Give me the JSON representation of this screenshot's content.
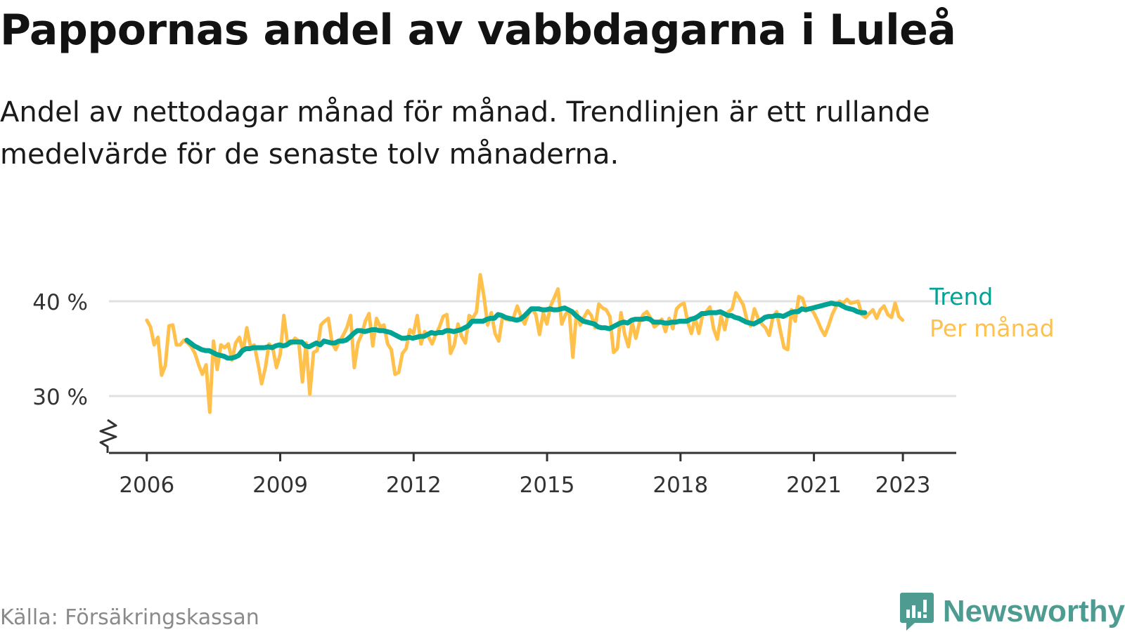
{
  "header": {
    "title": "Pappornas andel av vabbdagarna i Luleå",
    "subtitle": "Andel av nettodagar månad för månad. Trendlinjen är ett rullande medelvärde för de senaste tolv månaderna."
  },
  "footer": {
    "source": "Källa: Försäkringskassan",
    "brand": "Newsworthy"
  },
  "colors": {
    "monthly": "#ffc04c",
    "trend": "#00a394",
    "axis": "#333333",
    "grid": "#e0e0e0",
    "brand": "#4d9b91"
  },
  "chart_data": {
    "type": "line",
    "x_unit": "year",
    "y_unit": "%",
    "xlim": [
      2005.15,
      2024.2
    ],
    "ylim": [
      24,
      44
    ],
    "y_break": true,
    "yticks": [
      30,
      40
    ],
    "ytick_labels": [
      "30 %",
      "40 %"
    ],
    "xticks": [
      2006,
      2009,
      2012,
      2015,
      2018,
      2021,
      2023
    ],
    "xtick_labels": [
      "2006",
      "2009",
      "2012",
      "2015",
      "2018",
      "2021",
      "2023"
    ],
    "legend_placement": "right end of lines",
    "series": [
      {
        "name": "Trend",
        "color_key": "trend",
        "x_start": 2006.9,
        "x_step": 0.0833,
        "values": [
          35.9,
          35.6,
          35.3,
          35.1,
          34.9,
          34.8,
          34.8,
          34.6,
          34.4,
          34.3,
          34.2,
          34.0,
          34.0,
          34.1,
          34.3,
          34.8,
          35.0,
          35.0,
          35.1,
          35.1,
          35.1,
          35.1,
          35.2,
          35.1,
          35.3,
          35.4,
          35.3,
          35.4,
          35.7,
          35.7,
          35.7,
          35.7,
          35.3,
          35.2,
          35.4,
          35.6,
          35.4,
          35.8,
          35.7,
          35.6,
          35.6,
          35.8,
          35.8,
          35.9,
          36.2,
          36.6,
          36.9,
          36.9,
          36.8,
          36.9,
          37.0,
          37.0,
          36.9,
          36.9,
          36.8,
          36.7,
          36.5,
          36.3,
          36.1,
          36.1,
          36.2,
          36.1,
          36.2,
          36.3,
          36.3,
          36.5,
          36.7,
          36.6,
          36.7,
          36.7,
          36.9,
          36.9,
          36.8,
          36.9,
          37.0,
          37.2,
          37.4,
          37.9,
          37.9,
          37.9,
          37.9,
          38.1,
          38.2,
          38.2,
          38.6,
          38.5,
          38.3,
          38.2,
          38.1,
          38.0,
          38.1,
          38.4,
          38.8,
          39.2,
          39.2,
          39.2,
          39.1,
          39.1,
          39.2,
          39.1,
          39.1,
          39.2,
          39.3,
          39.1,
          38.9,
          38.5,
          38.2,
          37.9,
          37.8,
          37.7,
          37.6,
          37.3,
          37.2,
          37.2,
          37.1,
          37.3,
          37.5,
          37.7,
          37.8,
          37.7,
          38.0,
          38.1,
          38.1,
          38.1,
          38.2,
          38.1,
          37.8,
          37.8,
          37.8,
          37.7,
          37.7,
          37.8,
          37.8,
          37.9,
          37.9,
          37.9,
          38.1,
          38.2,
          38.4,
          38.7,
          38.7,
          38.8,
          38.8,
          38.8,
          38.9,
          38.7,
          38.5,
          38.5,
          38.3,
          38.2,
          38.0,
          37.8,
          37.7,
          37.6,
          37.8,
          38.0,
          38.3,
          38.4,
          38.4,
          38.5,
          38.5,
          38.4,
          38.6,
          38.8,
          38.9,
          38.9,
          39.2,
          39.1,
          39.2,
          39.3,
          39.4,
          39.5,
          39.6,
          39.7,
          39.8,
          39.7,
          39.7,
          39.5,
          39.3,
          39.2,
          39.1,
          38.9,
          38.8,
          38.8
        ]
      },
      {
        "name": "Per månad",
        "color_key": "monthly",
        "x_start": 2006.0,
        "x_step": 0.0833,
        "values": [
          38.0,
          37.3,
          35.4,
          36.2,
          32.2,
          33.2,
          37.4,
          37.5,
          35.4,
          35.4,
          35.9,
          35.6,
          35.2,
          34.5,
          33.3,
          32.3,
          33.3,
          28.3,
          35.8,
          32.8,
          35.4,
          35.1,
          35.5,
          33.8,
          35.6,
          36.2,
          34.7,
          37.2,
          35.2,
          35.4,
          33.5,
          31.3,
          33.0,
          35.5,
          35.1,
          33.0,
          34.4,
          38.5,
          35.5,
          35.5,
          36.1,
          35.8,
          31.5,
          35.6,
          30.2,
          34.6,
          34.8,
          37.5,
          37.9,
          38.2,
          35.6,
          34.9,
          35.8,
          36.4,
          37.2,
          38.5,
          33.0,
          35.6,
          36.5,
          37.9,
          38.7,
          35.3,
          38.2,
          37.3,
          37.5,
          35.5,
          34.9,
          32.3,
          32.5,
          34.5,
          35.0,
          37.0,
          36.6,
          38.5,
          35.5,
          36.8,
          36.3,
          35.5,
          36.5,
          37.3,
          38.4,
          38.6,
          34.5,
          35.4,
          37.6,
          36.3,
          35.6,
          38.5,
          38.2,
          38.9,
          42.8,
          40.5,
          37.5,
          38.8,
          36.6,
          35.8,
          38.3,
          38.1,
          38.0,
          38.3,
          39.5,
          38.4,
          37.6,
          38.7,
          39.2,
          38.6,
          36.5,
          38.8,
          37.6,
          39.5,
          40.4,
          41.3,
          37.6,
          38.6,
          39.1,
          34.1,
          38.9,
          37.5,
          38.3,
          39.0,
          38.5,
          37.2,
          39.7,
          39.3,
          39.1,
          38.4,
          34.6,
          35.0,
          38.8,
          36.5,
          35.2,
          37.8,
          36.1,
          37.8,
          38.6,
          38.9,
          38.2,
          37.3,
          37.6,
          38.1,
          36.8,
          38.2,
          37.1,
          39.2,
          39.6,
          39.8,
          37.8,
          36.6,
          38.3,
          36.6,
          38.5,
          38.9,
          39.4,
          37.1,
          36.0,
          38.4,
          37.0,
          38.9,
          39.2,
          40.9,
          40.3,
          39.6,
          38.0,
          37.4,
          39.2,
          38.2,
          37.6,
          37.2,
          36.4,
          38.3,
          38.9,
          36.9,
          35.1,
          34.9,
          39.1,
          37.9,
          40.5,
          40.3,
          39.0,
          39.3,
          38.8,
          38.0,
          37.1,
          36.4,
          37.4,
          38.6,
          39.4,
          40.0,
          39.8,
          40.2,
          39.8,
          39.9,
          40.0,
          38.6,
          38.3,
          38.7,
          39.1,
          38.2,
          39.1,
          39.5,
          38.6,
          38.3,
          39.8,
          38.4,
          38.0
        ]
      }
    ]
  }
}
